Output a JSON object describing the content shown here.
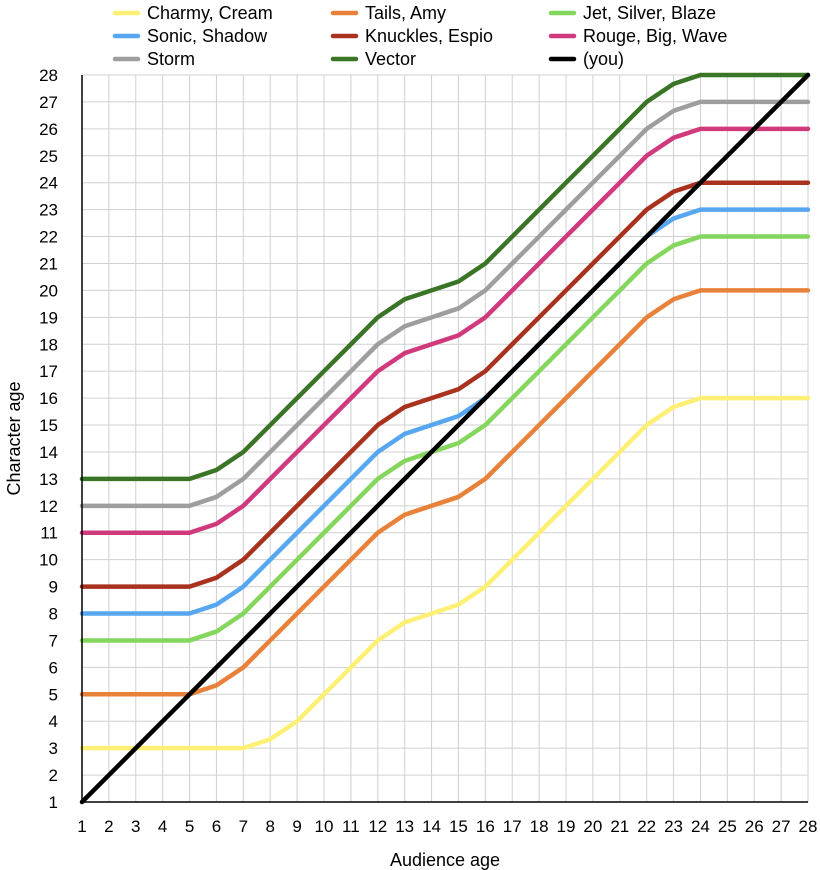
{
  "chart_data": {
    "type": "line",
    "xlabel": "Audience age",
    "ylabel": "Character age",
    "xlim": [
      1,
      28
    ],
    "ylim": [
      1,
      28
    ],
    "x_ticks": [
      1,
      2,
      3,
      4,
      5,
      6,
      7,
      8,
      9,
      10,
      11,
      12,
      13,
      14,
      15,
      16,
      17,
      18,
      19,
      20,
      21,
      22,
      23,
      24,
      25,
      26,
      27,
      28
    ],
    "y_ticks": [
      1,
      2,
      3,
      4,
      5,
      6,
      7,
      8,
      9,
      10,
      11,
      12,
      13,
      14,
      15,
      16,
      17,
      18,
      19,
      20,
      21,
      22,
      23,
      24,
      25,
      26,
      27,
      28
    ],
    "grid": true,
    "legend_position": "top",
    "x": [
      1,
      2,
      3,
      4,
      5,
      6,
      7,
      8,
      9,
      10,
      11,
      12,
      13,
      14,
      15,
      16,
      17,
      18,
      19,
      20,
      21,
      22,
      23,
      24,
      25,
      26,
      27,
      28
    ],
    "series": [
      {
        "name": "Charmy, Cream",
        "color": "#fdf074",
        "values": [
          3,
          3,
          3,
          3,
          3,
          3,
          3,
          3.33,
          4,
          5,
          6,
          7,
          7.67,
          8,
          8.33,
          9,
          10,
          11,
          12,
          13,
          14,
          15,
          15.67,
          16,
          16,
          16,
          16,
          16
        ]
      },
      {
        "name": "Tails, Amy",
        "color": "#e8823a",
        "values": [
          5,
          5,
          5,
          5,
          5,
          5.33,
          6,
          7,
          8,
          9,
          10,
          11,
          11.67,
          12,
          12.33,
          13,
          14,
          15,
          16,
          17,
          18,
          19,
          19.67,
          20,
          20,
          20,
          20,
          20
        ]
      },
      {
        "name": "Jet, Silver, Blaze",
        "color": "#84d65d",
        "values": [
          7,
          7,
          7,
          7,
          7,
          7.33,
          8,
          9,
          10,
          11,
          12,
          13,
          13.67,
          14,
          14.33,
          15,
          16,
          17,
          18,
          19,
          20,
          21,
          21.67,
          22,
          22,
          22,
          22,
          22
        ]
      },
      {
        "name": "Sonic, Shadow",
        "color": "#56a6f0",
        "values": [
          8,
          8,
          8,
          8,
          8,
          8.33,
          9,
          10,
          11,
          12,
          13,
          14,
          14.67,
          15,
          15.33,
          16,
          17,
          18,
          19,
          20,
          21,
          22,
          22.67,
          23,
          23,
          23,
          23,
          23
        ]
      },
      {
        "name": "Knuckles, Espio",
        "color": "#a8321e",
        "values": [
          9,
          9,
          9,
          9,
          9,
          9.33,
          10,
          11,
          12,
          13,
          14,
          15,
          15.67,
          16,
          16.33,
          17,
          18,
          19,
          20,
          21,
          22,
          23,
          23.67,
          24,
          24,
          24,
          24,
          24
        ]
      },
      {
        "name": "Rouge, Big, Wave",
        "color": "#d03a7c",
        "values": [
          11,
          11,
          11,
          11,
          11,
          11.33,
          12,
          13,
          14,
          15,
          16,
          17,
          17.67,
          18,
          18.33,
          19,
          20,
          21,
          22,
          23,
          24,
          25,
          25.67,
          26,
          26,
          26,
          26,
          26
        ]
      },
      {
        "name": "Storm",
        "color": "#9e9e9e",
        "values": [
          12,
          12,
          12,
          12,
          12,
          12.33,
          13,
          14,
          15,
          16,
          17,
          18,
          18.67,
          19,
          19.33,
          20,
          21,
          22,
          23,
          24,
          25,
          26,
          26.67,
          27,
          27,
          27,
          27,
          27
        ]
      },
      {
        "name": "Vector",
        "color": "#3a7426",
        "values": [
          13,
          13,
          13,
          13,
          13,
          13.33,
          14,
          15,
          16,
          17,
          18,
          19,
          19.67,
          20,
          20.33,
          21,
          22,
          23,
          24,
          25,
          26,
          27,
          27.67,
          28,
          28,
          28,
          28,
          28
        ]
      },
      {
        "name": "(you)",
        "color": "#000000",
        "values": [
          1,
          2,
          3,
          4,
          5,
          6,
          7,
          8,
          9,
          10,
          11,
          12,
          13,
          14,
          15,
          16,
          17,
          18,
          19,
          20,
          21,
          22,
          23,
          24,
          25,
          26,
          27,
          28
        ]
      }
    ],
    "legend_order": [
      "Charmy, Cream",
      "Tails, Amy",
      "Jet, Silver, Blaze",
      "Sonic, Shadow",
      "Knuckles, Espio",
      "Rouge, Big, Wave",
      "Storm",
      "Vector",
      "(you)"
    ]
  }
}
